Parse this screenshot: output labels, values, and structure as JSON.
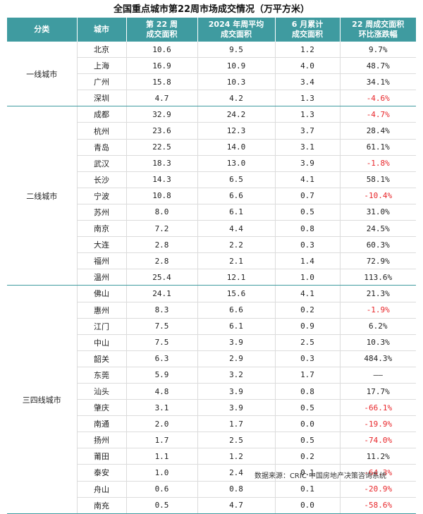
{
  "title": "全国重点城市第22周市场成交情况（万平方米）",
  "headers": {
    "category": "分类",
    "city": "城市",
    "week22_line1": "第 22 周",
    "week22_line2": "成交面积",
    "avg2024_line1": "2024 年周平均",
    "avg2024_line2": "成交面积",
    "june_line1": "6 月累计",
    "june_line2": "成交面积",
    "change_line1": "22 周成交面积",
    "change_line2": "环比涨跌幅"
  },
  "groups": [
    {
      "name": "一线城市",
      "rows": [
        {
          "city": "北京",
          "week22": "10.6",
          "avg2024": "9.5",
          "june": "1.2",
          "change": "9.7%",
          "negative": false
        },
        {
          "city": "上海",
          "week22": "16.9",
          "avg2024": "10.9",
          "june": "4.0",
          "change": "48.7%",
          "negative": false
        },
        {
          "city": "广州",
          "week22": "15.8",
          "avg2024": "10.3",
          "june": "3.4",
          "change": "34.1%",
          "negative": false
        },
        {
          "city": "深圳",
          "week22": "4.7",
          "avg2024": "4.2",
          "june": "1.3",
          "change": "-4.6%",
          "negative": true
        }
      ]
    },
    {
      "name": "二线城市",
      "rows": [
        {
          "city": "成都",
          "week22": "32.9",
          "avg2024": "24.2",
          "june": "1.3",
          "change": "-4.7%",
          "negative": true
        },
        {
          "city": "杭州",
          "week22": "23.6",
          "avg2024": "12.3",
          "june": "3.7",
          "change": "28.4%",
          "negative": false
        },
        {
          "city": "青岛",
          "week22": "22.5",
          "avg2024": "14.0",
          "june": "3.1",
          "change": "61.1%",
          "negative": false
        },
        {
          "city": "武汉",
          "week22": "18.3",
          "avg2024": "13.0",
          "june": "3.9",
          "change": "-1.8%",
          "negative": true
        },
        {
          "city": "长沙",
          "week22": "14.3",
          "avg2024": "6.5",
          "june": "4.1",
          "change": "58.1%",
          "negative": false
        },
        {
          "city": "宁波",
          "week22": "10.8",
          "avg2024": "6.6",
          "june": "0.7",
          "change": "-10.4%",
          "negative": true
        },
        {
          "city": "苏州",
          "week22": "8.0",
          "avg2024": "6.1",
          "june": "0.5",
          "change": "31.0%",
          "negative": false
        },
        {
          "city": "南京",
          "week22": "7.2",
          "avg2024": "4.4",
          "june": "0.8",
          "change": "24.5%",
          "negative": false
        },
        {
          "city": "大连",
          "week22": "2.8",
          "avg2024": "2.2",
          "june": "0.3",
          "change": "60.3%",
          "negative": false
        },
        {
          "city": "福州",
          "week22": "2.8",
          "avg2024": "2.1",
          "june": "1.4",
          "change": "72.9%",
          "negative": false
        },
        {
          "city": "温州",
          "week22": "25.4",
          "avg2024": "12.1",
          "june": "1.0",
          "change": "113.6%",
          "negative": false
        }
      ]
    },
    {
      "name": "三四线城市",
      "rows": [
        {
          "city": "佛山",
          "week22": "24.1",
          "avg2024": "15.6",
          "june": "4.1",
          "change": "21.3%",
          "negative": false
        },
        {
          "city": "惠州",
          "week22": "8.3",
          "avg2024": "6.6",
          "june": "0.2",
          "change": "-1.9%",
          "negative": true
        },
        {
          "city": "江门",
          "week22": "7.5",
          "avg2024": "6.1",
          "june": "0.9",
          "change": "6.2%",
          "negative": false
        },
        {
          "city": "中山",
          "week22": "7.5",
          "avg2024": "3.9",
          "june": "2.5",
          "change": "10.3%",
          "negative": false
        },
        {
          "city": "韶关",
          "week22": "6.3",
          "avg2024": "2.9",
          "june": "0.3",
          "change": "484.3%",
          "negative": false
        },
        {
          "city": "东莞",
          "week22": "5.9",
          "avg2024": "3.2",
          "june": "1.7",
          "change": "——",
          "negative": false
        },
        {
          "city": "汕头",
          "week22": "4.8",
          "avg2024": "3.9",
          "june": "0.8",
          "change": "17.7%",
          "negative": false
        },
        {
          "city": "肇庆",
          "week22": "3.1",
          "avg2024": "3.9",
          "june": "0.5",
          "change": "-66.1%",
          "negative": true
        },
        {
          "city": "南通",
          "week22": "2.0",
          "avg2024": "1.7",
          "june": "0.0",
          "change": "-19.9%",
          "negative": true
        },
        {
          "city": "扬州",
          "week22": "1.7",
          "avg2024": "2.5",
          "june": "0.5",
          "change": "-74.0%",
          "negative": true
        },
        {
          "city": "莆田",
          "week22": "1.1",
          "avg2024": "1.2",
          "june": "0.2",
          "change": "11.2%",
          "negative": false
        },
        {
          "city": "泰安",
          "week22": "1.0",
          "avg2024": "2.4",
          "june": "0.1",
          "change": "-64.3%",
          "negative": true
        },
        {
          "city": "舟山",
          "week22": "0.6",
          "avg2024": "0.8",
          "june": "0.1",
          "change": "-20.9%",
          "negative": true
        },
        {
          "city": "南充",
          "week22": "0.5",
          "avg2024": "4.7",
          "june": "0.0",
          "change": "-58.6%",
          "negative": true
        }
      ]
    }
  ],
  "source": "数据来源：CRIC 中国房地产决策咨询系统",
  "colors": {
    "header_bg": "#3f9ba0",
    "negative": "#e8262a"
  }
}
